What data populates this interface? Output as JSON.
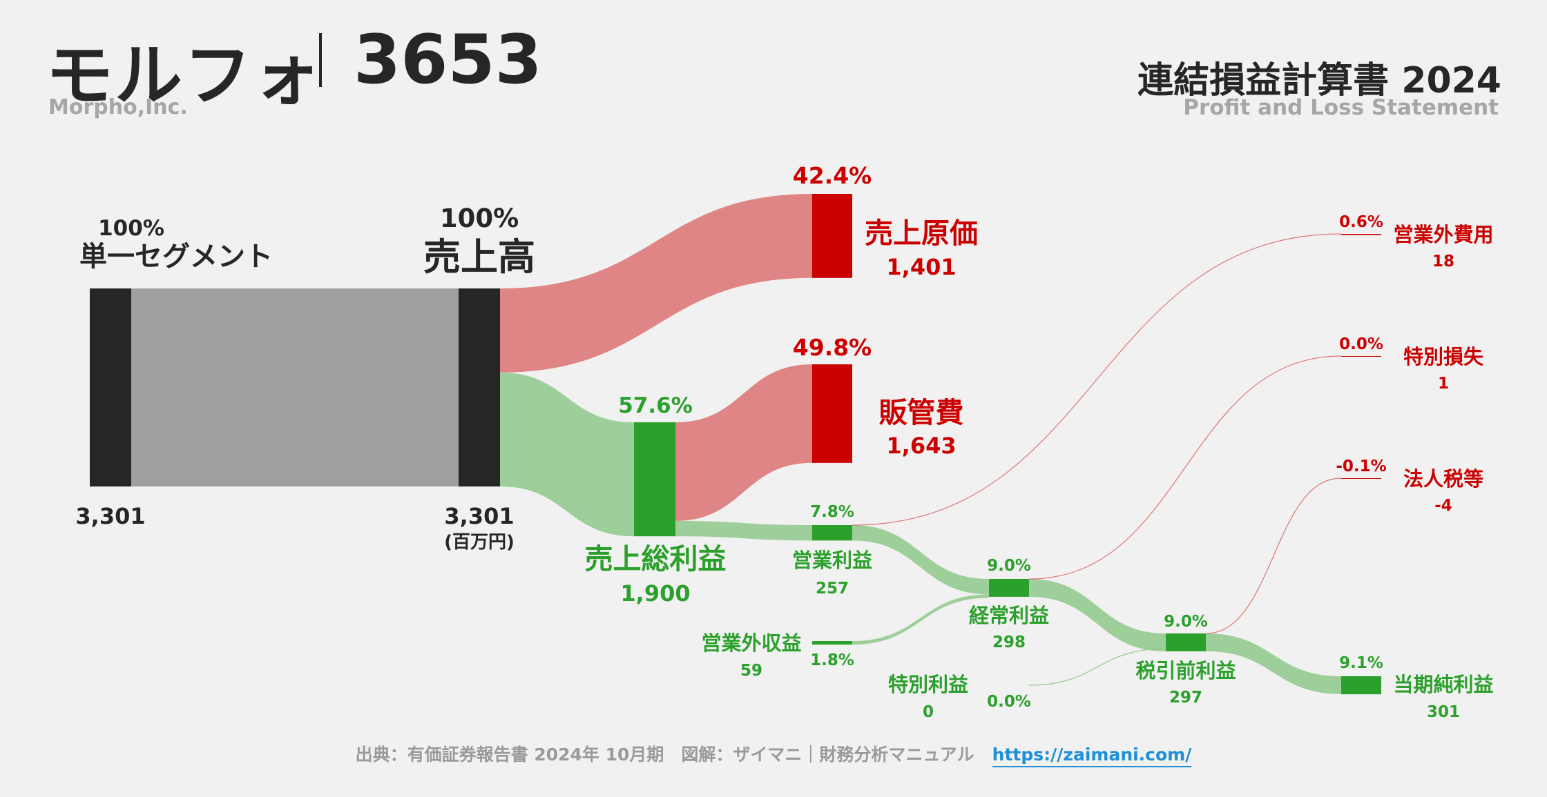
{
  "header": {
    "company_name": "モルフォ",
    "ticker": "3653",
    "company_en": "Morpho,Inc.",
    "statement_title": "連結損益計算書 2024",
    "statement_subtitle": "Profit and Loss Statement"
  },
  "footer": {
    "source": "出典：有価証券報告書 2024年 10月期　図解：ザイマニ｜財務分析マニュアル",
    "url": "https://zaimani.com/"
  },
  "colors": {
    "revenue_bar": "#262626",
    "revenue_flow": "#a0a0a0",
    "cost_bar": "#cc0000",
    "cost_flow": "#e08585",
    "profit_bar": "#2ca02c",
    "profit_flow": "#9ecf9a",
    "cost_label": "#cc0000",
    "profit_label": "#2ca02c",
    "text": "#262626"
  },
  "chart_data": {
    "type": "sankey",
    "unit": "(百万円)",
    "nodes": [
      {
        "id": "segment",
        "label": "単一セグメント",
        "value": "3,301",
        "percent": "100%"
      },
      {
        "id": "revenue",
        "label": "売上高",
        "value": "3,301",
        "percent": "100%"
      },
      {
        "id": "cogs",
        "label": "売上原価",
        "value": "1,401",
        "percent": "42.4%"
      },
      {
        "id": "gross_profit",
        "label": "売上総利益",
        "value": "1,900",
        "percent": "57.6%"
      },
      {
        "id": "sga",
        "label": "販管費",
        "value": "1,643",
        "percent": "49.8%"
      },
      {
        "id": "operating_profit",
        "label": "営業利益",
        "value": "257",
        "percent": "7.8%"
      },
      {
        "id": "non_op_income",
        "label": "営業外収益",
        "value": "59",
        "percent": "1.8%"
      },
      {
        "id": "non_op_expense",
        "label": "営業外費用",
        "value": "18",
        "percent": "0.6%"
      },
      {
        "id": "ordinary_profit",
        "label": "経常利益",
        "value": "298",
        "percent": "9.0%"
      },
      {
        "id": "extra_gain",
        "label": "特別利益",
        "value": "0",
        "percent": "0.0%"
      },
      {
        "id": "extra_loss",
        "label": "特別損失",
        "value": "1",
        "percent": "0.0%"
      },
      {
        "id": "pretax_profit",
        "label": "税引前利益",
        "value": "297",
        "percent": "9.0%"
      },
      {
        "id": "income_tax",
        "label": "法人税等",
        "value": "-4",
        "percent": "-0.1%"
      },
      {
        "id": "net_income",
        "label": "当期純利益",
        "value": "301",
        "percent": "9.1%"
      }
    ],
    "links": [
      {
        "source": "segment",
        "target": "revenue",
        "value": 3301
      },
      {
        "source": "revenue",
        "target": "cogs",
        "value": 1401
      },
      {
        "source": "revenue",
        "target": "gross_profit",
        "value": 1900
      },
      {
        "source": "gross_profit",
        "target": "sga",
        "value": 1643
      },
      {
        "source": "gross_profit",
        "target": "operating_profit",
        "value": 257
      },
      {
        "source": "operating_profit",
        "target": "ordinary_profit",
        "value": 257
      },
      {
        "source": "non_op_income",
        "target": "ordinary_profit",
        "value": 59
      },
      {
        "source": "operating_profit",
        "target": "non_op_expense",
        "value": 18
      },
      {
        "source": "ordinary_profit",
        "target": "pretax_profit",
        "value": 298
      },
      {
        "source": "extra_gain",
        "target": "pretax_profit",
        "value": 0
      },
      {
        "source": "ordinary_profit",
        "target": "extra_loss",
        "value": 1
      },
      {
        "source": "pretax_profit",
        "target": "net_income",
        "value": 297
      },
      {
        "source": "pretax_profit",
        "target": "income_tax",
        "value": -4
      }
    ]
  }
}
